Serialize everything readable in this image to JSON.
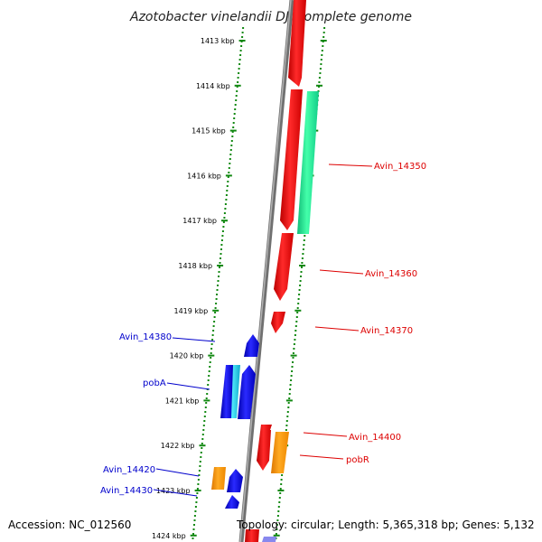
{
  "title": "Azotobacter vinelandii DJ, complete genome",
  "footer": {
    "accession": "Accession: NC_012560",
    "topology": "Topology: circular; Length: 5,365,318 bp; Genes: 5,132"
  },
  "colors": {
    "forward_strand": "#ee0000",
    "reverse_strand": "#0000ee",
    "highlight_green": "#22ee99",
    "highlight_orange": "#ff9900",
    "highlight_cyan": "#22ccee",
    "tick_green": "#118811",
    "backbone": "#808080"
  },
  "kbp_ticks": [
    "1413 kbp",
    "1414 kbp",
    "1415 kbp",
    "1416 kbp",
    "1417 kbp",
    "1418 kbp",
    "1419 kbp",
    "1420 kbp",
    "1421 kbp",
    "1422 kbp",
    "1423 kbp",
    "1424 kbp"
  ],
  "gene_labels": [
    {
      "text": "Avin_14350",
      "color": "#dd0000",
      "side": "right"
    },
    {
      "text": "Avin_14360",
      "color": "#dd0000",
      "side": "right"
    },
    {
      "text": "Avin_14370",
      "color": "#dd0000",
      "side": "right"
    },
    {
      "text": "Avin_14380",
      "color": "#0000cc",
      "side": "left"
    },
    {
      "text": "pobA",
      "color": "#0000cc",
      "side": "left"
    },
    {
      "text": "Avin_14400",
      "color": "#dd0000",
      "side": "right"
    },
    {
      "text": "pobR",
      "color": "#dd0000",
      "side": "right"
    },
    {
      "text": "Avin_14420",
      "color": "#0000cc",
      "side": "left"
    },
    {
      "text": "Avin_14430",
      "color": "#0000cc",
      "side": "left"
    }
  ]
}
